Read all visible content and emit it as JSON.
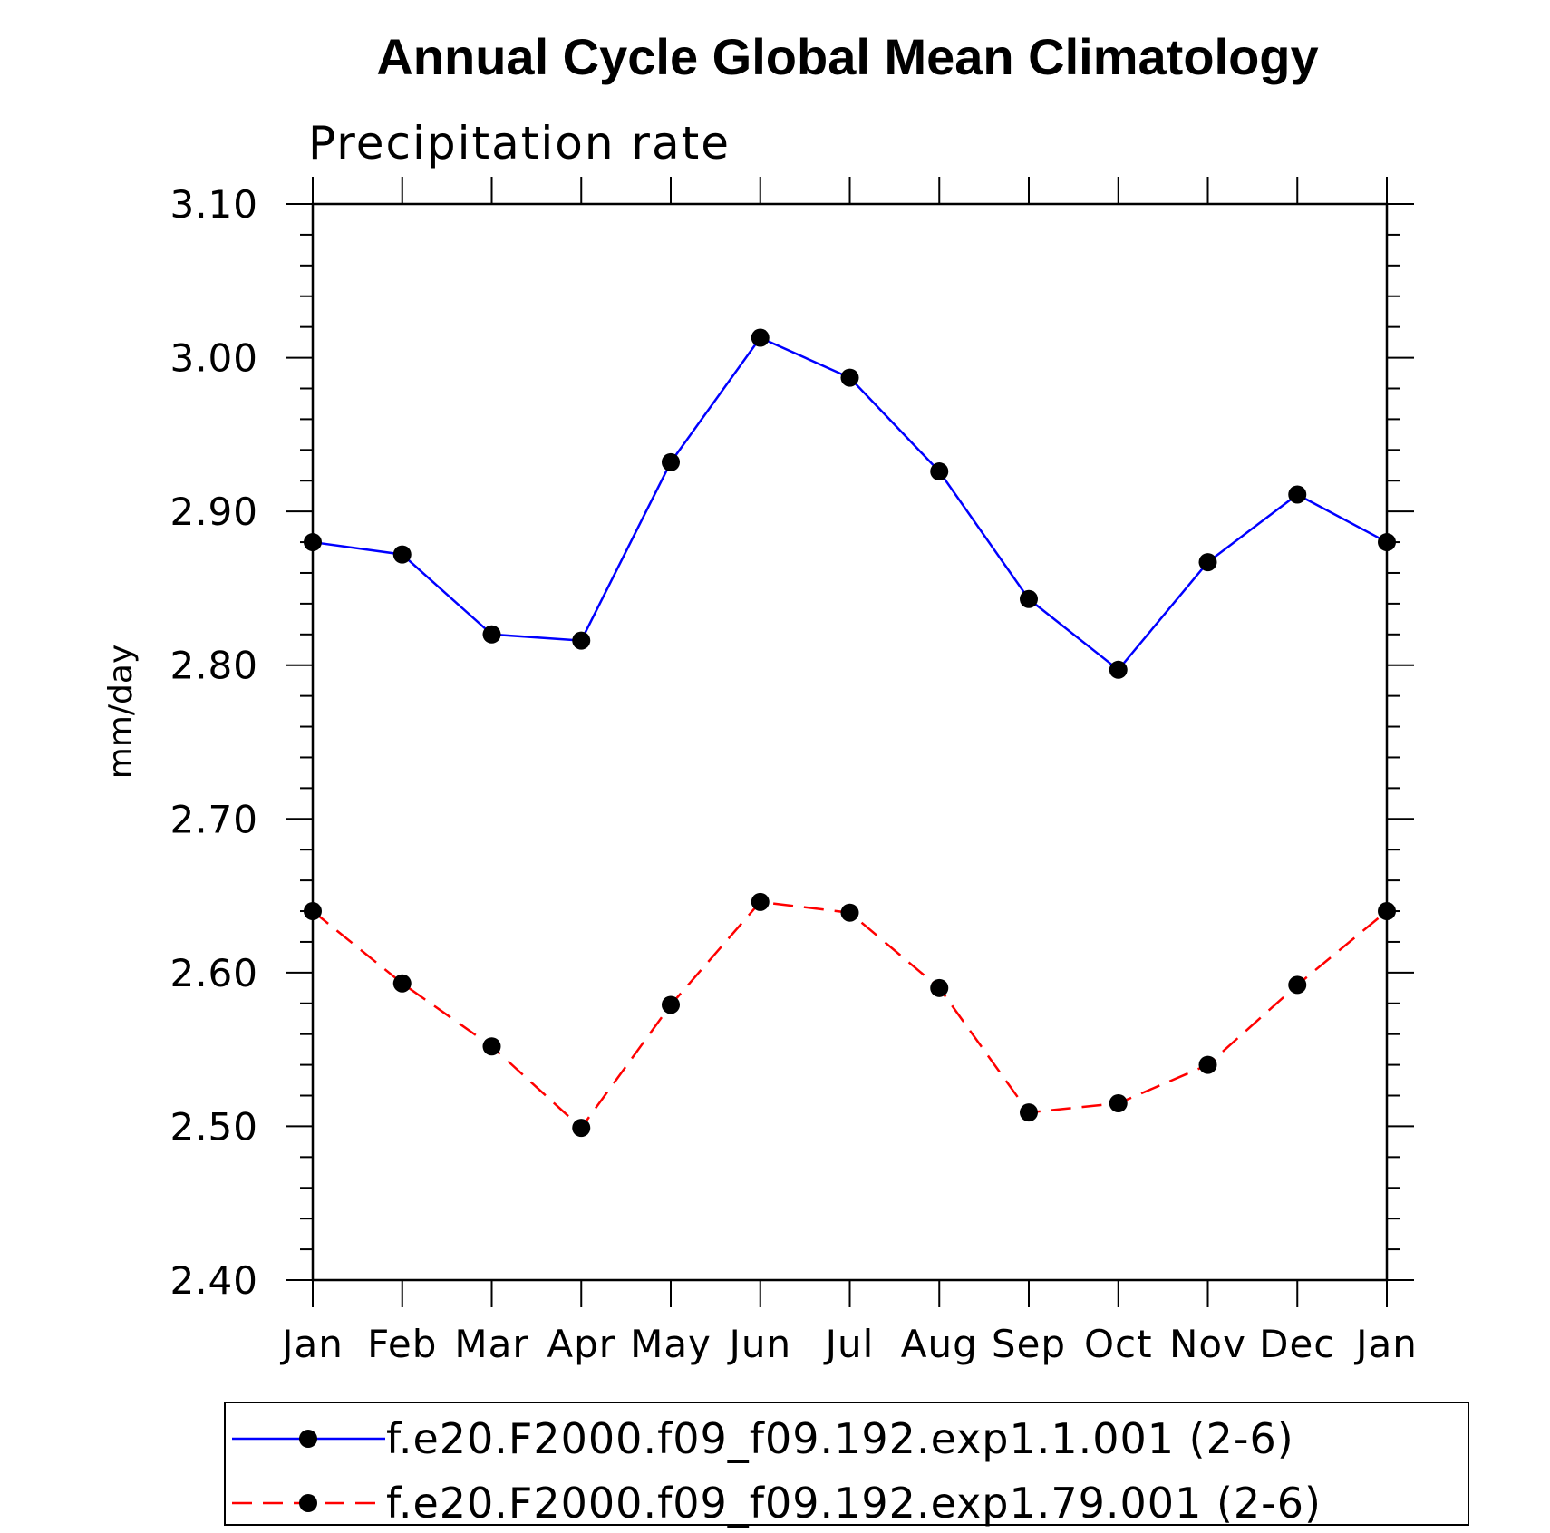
{
  "chart_data": {
    "type": "line",
    "title": "Annual Cycle Global Mean Climatology",
    "subtitle": "Precipitation rate",
    "ylabel": "mm/day",
    "xlabel": "",
    "categories": [
      "Jan",
      "Feb",
      "Mar",
      "Apr",
      "May",
      "Jun",
      "Jul",
      "Aug",
      "Sep",
      "Oct",
      "Nov",
      "Dec",
      "Jan"
    ],
    "ylim": [
      2.4,
      3.1
    ],
    "yticks": [
      "2.40",
      "2.50",
      "2.60",
      "2.70",
      "2.80",
      "2.90",
      "3.00",
      "3.10"
    ],
    "grid": false,
    "legend_position": "bottom",
    "series": [
      {
        "name": "f.e20.F2000.f09_f09.192.exp1.1.001 (2-6)",
        "color": "#0000ff",
        "line_style": "solid",
        "marker": "filled-circle",
        "values": [
          2.88,
          2.872,
          2.82,
          2.816,
          2.932,
          3.013,
          2.987,
          2.926,
          2.843,
          2.797,
          2.867,
          2.911,
          2.88
        ]
      },
      {
        "name": "f.e20.F2000.f09_f09.192.exp1.79.001 (2-6)",
        "color": "#ff0000",
        "line_style": "dashed",
        "marker": "filled-circle",
        "values": [
          2.64,
          2.593,
          2.552,
          2.499,
          2.579,
          2.646,
          2.639,
          2.59,
          2.509,
          2.515,
          2.54,
          2.592,
          2.64
        ]
      }
    ]
  }
}
